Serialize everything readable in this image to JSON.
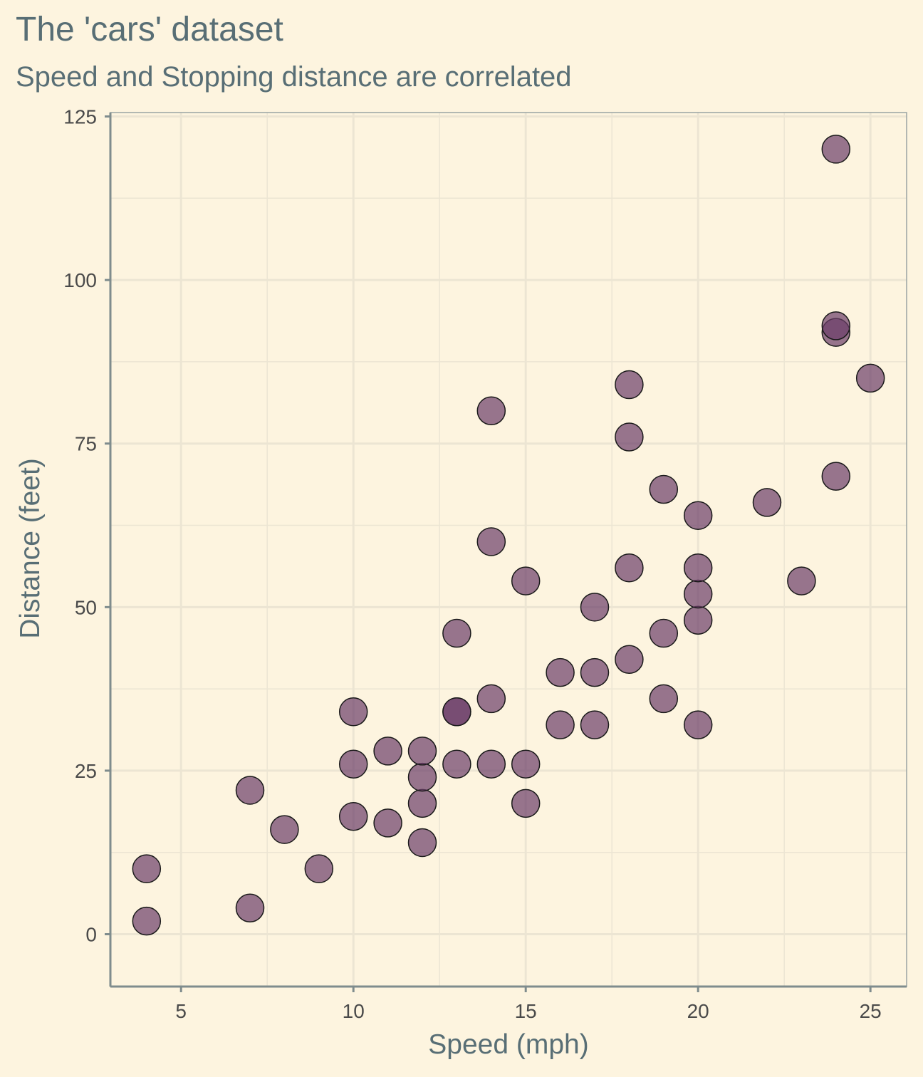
{
  "chart_data": {
    "type": "scatter",
    "title": "The 'cars' dataset",
    "subtitle": "Speed and Stopping distance are correlated",
    "xlabel": "Speed (mph)",
    "ylabel": "Distance (feet)",
    "xlim": [
      2.95,
      26.05
    ],
    "ylim": [
      -8,
      125.6
    ],
    "x_ticks": [
      5,
      10,
      15,
      20,
      25
    ],
    "y_ticks": [
      0,
      25,
      50,
      75,
      100,
      125
    ],
    "grid": true,
    "legend": "none",
    "colors": {
      "background": "#fdf4df",
      "point_fill": "#6b3d68",
      "point_stroke": "#1a1a1a",
      "grid": "#ece5d3",
      "axis": "#7f8c8d",
      "text": "#586e75"
    },
    "points": [
      [
        4,
        2
      ],
      [
        4,
        10
      ],
      [
        7,
        4
      ],
      [
        7,
        22
      ],
      [
        8,
        16
      ],
      [
        9,
        10
      ],
      [
        10,
        18
      ],
      [
        10,
        26
      ],
      [
        10,
        34
      ],
      [
        11,
        17
      ],
      [
        11,
        28
      ],
      [
        12,
        14
      ],
      [
        12,
        20
      ],
      [
        12,
        24
      ],
      [
        12,
        28
      ],
      [
        13,
        26
      ],
      [
        13,
        34
      ],
      [
        13,
        34
      ],
      [
        13,
        46
      ],
      [
        14,
        26
      ],
      [
        14,
        36
      ],
      [
        14,
        60
      ],
      [
        14,
        80
      ],
      [
        15,
        20
      ],
      [
        15,
        26
      ],
      [
        15,
        54
      ],
      [
        16,
        32
      ],
      [
        16,
        40
      ],
      [
        17,
        32
      ],
      [
        17,
        40
      ],
      [
        17,
        50
      ],
      [
        18,
        42
      ],
      [
        18,
        56
      ],
      [
        18,
        76
      ],
      [
        18,
        84
      ],
      [
        19,
        36
      ],
      [
        19,
        46
      ],
      [
        19,
        68
      ],
      [
        20,
        32
      ],
      [
        20,
        48
      ],
      [
        20,
        52
      ],
      [
        20,
        56
      ],
      [
        20,
        64
      ],
      [
        22,
        66
      ],
      [
        23,
        54
      ],
      [
        24,
        70
      ],
      [
        24,
        92
      ],
      [
        24,
        93
      ],
      [
        24,
        120
      ],
      [
        25,
        85
      ]
    ]
  }
}
